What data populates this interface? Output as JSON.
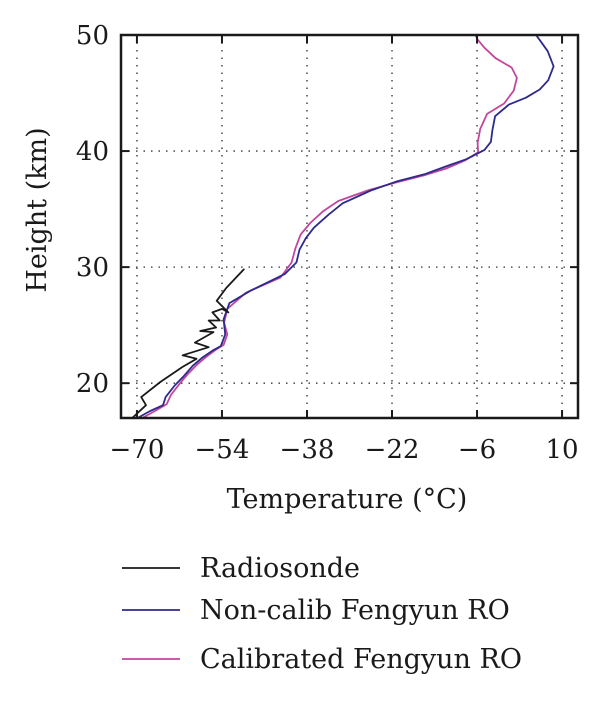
{
  "chart_data": {
    "type": "line",
    "xlabel": "Temperature (°C)",
    "ylabel": "Height (km)",
    "xlim": [
      -73,
      13
    ],
    "ylim": [
      17,
      50
    ],
    "xticks": [
      -70,
      -54,
      -38,
      -22,
      -6,
      10
    ],
    "xtick_labels": [
      "−70",
      "−54",
      "−38",
      "−22",
      "−6",
      "10"
    ],
    "yticks": [
      20,
      30,
      40,
      50
    ],
    "ytick_labels": [
      "20",
      "30",
      "40",
      "50"
    ],
    "grid": true,
    "legend_position": "below",
    "series": [
      {
        "name": "Radiosonde",
        "color": "#1a1a1a",
        "x": [
          -70.9,
          -68.3,
          -69.2,
          -65.6,
          -61.4,
          -58.8,
          -61.4,
          -56.5,
          -59.1,
          -55.6,
          -58.1,
          -55.1,
          -56.5,
          -54.4,
          -55.8,
          -54.0,
          -52.8,
          -55.0,
          -53.2,
          -49.9
        ],
        "y": [
          17.0,
          18.1,
          18.8,
          20.1,
          21.4,
          22.1,
          22.4,
          23.1,
          23.5,
          24.4,
          24.5,
          24.8,
          25.4,
          25.4,
          26.1,
          26.4,
          26.1,
          27.1,
          28.2,
          29.8
        ]
      },
      {
        "name": "Non-calib Fengyun RO",
        "color": "#2d2a8c",
        "x": [
          -69.9,
          -67.5,
          -65.1,
          -64.6,
          -62.9,
          -61.2,
          -59.5,
          -57.7,
          -55.8,
          -54.2,
          -53.4,
          -53.7,
          -52.6,
          -48.5,
          -42.2,
          -40.0,
          -39.4,
          -38.2,
          -36.7,
          -34.0,
          -31.3,
          -26.0,
          -21.0,
          -15.9,
          -11.7,
          -8.0,
          -4.6,
          -3.4,
          -3.1,
          -2.6,
          0.0,
          3.2,
          5.8,
          7.4,
          8.4,
          7.3,
          5.9,
          5.1
        ],
        "y": [
          17.0,
          17.6,
          18.1,
          18.8,
          19.8,
          20.6,
          21.5,
          22.2,
          22.8,
          23.2,
          24.2,
          25.5,
          26.9,
          28.0,
          29.4,
          30.4,
          31.5,
          32.5,
          33.4,
          34.5,
          35.5,
          36.6,
          37.4,
          38.0,
          38.7,
          39.3,
          40.1,
          40.8,
          41.8,
          43.0,
          44.0,
          44.6,
          45.3,
          46.1,
          47.3,
          48.6,
          49.5,
          50.0
        ]
      },
      {
        "name": "Calibrated Fengyun RO",
        "color": "#c2469d",
        "x": [
          -69.0,
          -66.6,
          -64.4,
          -63.6,
          -61.9,
          -60.4,
          -58.7,
          -56.9,
          -55.1,
          -53.7,
          -53.0,
          -53.6,
          -53.0,
          -49.5,
          -43.0,
          -40.9,
          -40.2,
          -39.2,
          -37.4,
          -35.0,
          -32.1,
          -26.6,
          -21.2,
          -16.0,
          -11.8,
          -8.2,
          -5.8,
          -5.9,
          -5.4,
          -4.1,
          -0.9,
          0.9,
          1.5,
          0.5,
          -2.5,
          -4.6,
          -5.9,
          -6.3
        ],
        "y": [
          17.0,
          17.6,
          18.2,
          19.0,
          20.0,
          20.8,
          21.6,
          22.3,
          22.9,
          23.3,
          24.2,
          25.2,
          26.4,
          27.8,
          29.1,
          30.4,
          31.6,
          32.8,
          33.8,
          34.8,
          35.7,
          36.6,
          37.3,
          37.9,
          38.5,
          39.2,
          39.9,
          40.7,
          41.9,
          43.2,
          44.1,
          45.2,
          46.3,
          47.2,
          48.0,
          48.9,
          49.6,
          50.0
        ]
      }
    ]
  }
}
